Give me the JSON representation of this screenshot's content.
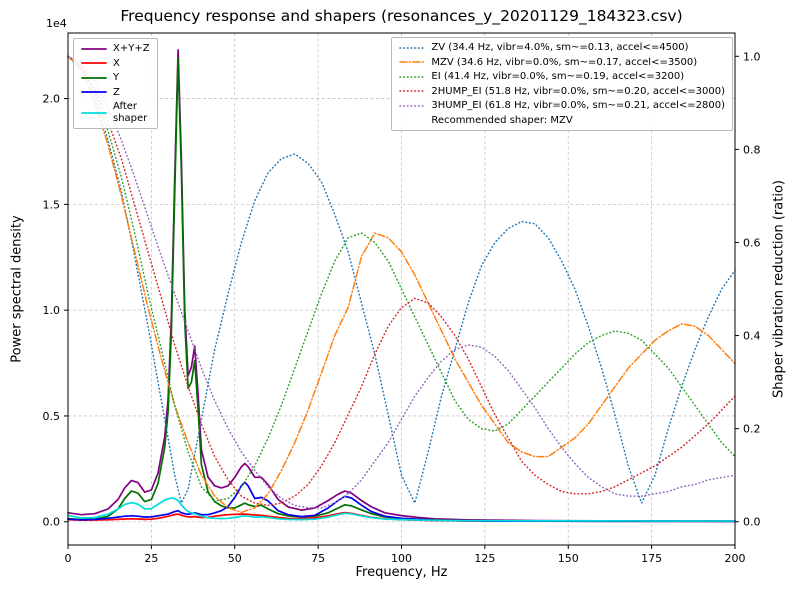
{
  "chart_data": {
    "type": "line",
    "title": "Frequency response and shapers (resonances_y_20201129_184323.csv)",
    "xlabel": "Frequency, Hz",
    "ylabel_left": "Power spectral density",
    "ylabel_right": "Shaper vibration reduction (ratio)",
    "xlim": [
      0,
      200
    ],
    "x_ticks": [
      0,
      25,
      50,
      75,
      100,
      125,
      150,
      175,
      200
    ],
    "left_axis": {
      "offset_text": "1e4",
      "range": [
        -1100,
        23100
      ],
      "ticks": [
        0,
        5000,
        10000,
        15000,
        20000
      ],
      "tick_labels": [
        "0.0",
        "0.5",
        "1.0",
        "1.5",
        "2.0"
      ]
    },
    "right_axis": {
      "range": [
        -0.05,
        1.05
      ],
      "ticks": [
        0,
        0.2,
        0.4,
        0.6,
        0.8,
        1.0
      ],
      "tick_labels": [
        "0.0",
        "0.2",
        "0.4",
        "0.6",
        "0.8",
        "1.0"
      ]
    },
    "grid": true,
    "legend_positions": [
      "upper left",
      "upper right"
    ],
    "recommended_shaper": "MZV",
    "recommended_text": "Recommended shaper: MZV",
    "psd_x": [
      0,
      4,
      8,
      12,
      15,
      17,
      19,
      21,
      23,
      25,
      27,
      29,
      30,
      31,
      32,
      33,
      34,
      35,
      36,
      37,
      38,
      39,
      40,
      42,
      44,
      46,
      48,
      50,
      52,
      53,
      54,
      56,
      58,
      60,
      63,
      66,
      70,
      74,
      78,
      81,
      83,
      85,
      88,
      91,
      95,
      100,
      105,
      110,
      115,
      120,
      130,
      140,
      160,
      180,
      200
    ],
    "psd_series": [
      {
        "name": "X+Y+Z",
        "legend_label": "X+Y+Z",
        "color": "#800080",
        "linestyle": "solid",
        "values": [
          420,
          330,
          380,
          600,
          1050,
          1600,
          1950,
          1850,
          1400,
          1500,
          2300,
          4000,
          5800,
          9700,
          16200,
          22300,
          17100,
          10100,
          6900,
          7300,
          8300,
          6000,
          3400,
          2100,
          1700,
          1600,
          1700,
          2100,
          2600,
          2750,
          2600,
          2100,
          2100,
          1750,
          1050,
          700,
          550,
          650,
          1000,
          1300,
          1450,
          1350,
          1000,
          700,
          420,
          290,
          200,
          140,
          110,
          90,
          70,
          55,
          45,
          40,
          38
        ]
      },
      {
        "name": "X",
        "legend_label": "X",
        "color": "#ff0000",
        "linestyle": "solid",
        "values": [
          100,
          70,
          80,
          90,
          110,
          130,
          140,
          130,
          110,
          120,
          160,
          220,
          260,
          300,
          340,
          360,
          310,
          260,
          230,
          230,
          240,
          220,
          200,
          210,
          260,
          300,
          330,
          350,
          360,
          360,
          350,
          320,
          300,
          260,
          200,
          160,
          150,
          180,
          280,
          380,
          430,
          400,
          300,
          210,
          140,
          100,
          75,
          55,
          45,
          38,
          30,
          25,
          20,
          18,
          16
        ]
      },
      {
        "name": "Y",
        "legend_label": "Y",
        "color": "#007000",
        "linestyle": "solid",
        "values": [
          150,
          100,
          120,
          250,
          600,
          1100,
          1450,
          1350,
          950,
          1050,
          1800,
          3500,
          5200,
          9000,
          15500,
          21900,
          16500,
          9500,
          6300,
          6600,
          7600,
          5300,
          2700,
          1400,
          950,
          750,
          650,
          650,
          800,
          880,
          800,
          720,
          780,
          600,
          380,
          280,
          230,
          260,
          420,
          650,
          800,
          750,
          560,
          380,
          230,
          160,
          110,
          80,
          60,
          50,
          40,
          30,
          25,
          22,
          20
        ]
      },
      {
        "name": "Z",
        "legend_label": "Z",
        "color": "#0000ee",
        "linestyle": "solid",
        "values": [
          120,
          90,
          110,
          160,
          220,
          260,
          280,
          260,
          220,
          230,
          280,
          330,
          360,
          420,
          480,
          520,
          420,
          380,
          350,
          380,
          420,
          380,
          330,
          330,
          420,
          520,
          720,
          1150,
          1700,
          1870,
          1700,
          1100,
          1150,
          980,
          520,
          330,
          240,
          300,
          650,
          1000,
          1200,
          1120,
          780,
          480,
          260,
          160,
          110,
          70,
          50,
          40,
          30,
          25,
          20,
          18,
          16
        ]
      },
      {
        "name": "After shaper",
        "legend_label": "After\nshaper",
        "color": "#00dcdc",
        "linestyle": "solid",
        "values": [
          300,
          180,
          200,
          350,
          600,
          820,
          900,
          830,
          600,
          620,
          820,
          1020,
          1080,
          1120,
          1100,
          1000,
          800,
          620,
          480,
          420,
          380,
          320,
          260,
          190,
          160,
          150,
          160,
          200,
          260,
          280,
          260,
          220,
          230,
          200,
          140,
          110,
          100,
          120,
          220,
          330,
          400,
          370,
          270,
          190,
          130,
          100,
          80,
          65,
          55,
          50,
          45,
          40,
          38,
          36,
          35
        ]
      }
    ],
    "shaper_x": [
      0,
      4,
      8,
      12,
      16,
      20,
      24,
      28,
      32,
      36,
      40,
      44,
      48,
      52,
      56,
      60,
      64,
      68,
      72,
      76,
      80,
      84,
      88,
      92,
      96,
      100,
      104,
      108,
      112,
      116,
      120,
      124,
      128,
      132,
      136,
      140,
      144,
      148,
      152,
      156,
      160,
      164,
      168,
      172,
      176,
      180,
      184,
      188,
      192,
      196,
      200
    ],
    "shaper_series": [
      {
        "name": "ZV",
        "label": "ZV (34.4 Hz, vibr=4.0%, sm~=0.13, accel<=4500)",
        "color": "#1f77b4",
        "linestyle": "dotted",
        "x": [
          0,
          4,
          8,
          12,
          16,
          20,
          24,
          28,
          32,
          34,
          36,
          40,
          44,
          48,
          52,
          56,
          60,
          64,
          68,
          72,
          76,
          80,
          84,
          88,
          92,
          96,
          100,
          104,
          108,
          112,
          116,
          120,
          124,
          128,
          132,
          136,
          140,
          144,
          148,
          152,
          156,
          160,
          164,
          168,
          172,
          176,
          180,
          184,
          188,
          192,
          196,
          200
        ],
        "values": [
          1.0,
          0.97,
          0.91,
          0.82,
          0.71,
          0.57,
          0.42,
          0.26,
          0.1,
          0.04,
          0.07,
          0.22,
          0.37,
          0.49,
          0.6,
          0.69,
          0.75,
          0.78,
          0.79,
          0.77,
          0.73,
          0.66,
          0.58,
          0.47,
          0.36,
          0.23,
          0.1,
          0.04,
          0.15,
          0.27,
          0.37,
          0.47,
          0.55,
          0.6,
          0.63,
          0.645,
          0.64,
          0.61,
          0.56,
          0.5,
          0.42,
          0.33,
          0.23,
          0.12,
          0.04,
          0.1,
          0.2,
          0.29,
          0.37,
          0.44,
          0.5,
          0.54
        ]
      },
      {
        "name": "MZV",
        "label": "MZV (34.6 Hz, vibr=0.0%, sm~=0.17, accel<=3500)",
        "color": "#ff7f0e",
        "linestyle": "dashdot",
        "values": [
          1.0,
          0.975,
          0.9,
          0.81,
          0.7,
          0.58,
          0.46,
          0.35,
          0.25,
          0.17,
          0.1,
          0.055,
          0.03,
          0.02,
          0.03,
          0.06,
          0.11,
          0.17,
          0.24,
          0.32,
          0.4,
          0.46,
          0.57,
          0.62,
          0.61,
          0.58,
          0.53,
          0.47,
          0.41,
          0.35,
          0.3,
          0.25,
          0.21,
          0.17,
          0.15,
          0.14,
          0.14,
          0.16,
          0.18,
          0.21,
          0.25,
          0.29,
          0.33,
          0.36,
          0.39,
          0.41,
          0.425,
          0.42,
          0.4,
          0.37,
          0.34
        ]
      },
      {
        "name": "EI",
        "label": "EI (41.4 Hz, vibr=0.0%, sm~=0.19, accel<=3200)",
        "color": "#2ca02c",
        "linestyle": "dotted",
        "values": [
          1.0,
          0.98,
          0.92,
          0.84,
          0.74,
          0.62,
          0.49,
          0.37,
          0.25,
          0.15,
          0.075,
          0.045,
          0.05,
          0.075,
          0.12,
          0.18,
          0.25,
          0.33,
          0.41,
          0.49,
          0.56,
          0.61,
          0.62,
          0.6,
          0.56,
          0.5,
          0.44,
          0.38,
          0.32,
          0.26,
          0.22,
          0.2,
          0.195,
          0.21,
          0.24,
          0.27,
          0.3,
          0.33,
          0.36,
          0.385,
          0.4,
          0.41,
          0.405,
          0.39,
          0.36,
          0.33,
          0.29,
          0.25,
          0.21,
          0.17,
          0.14
        ]
      },
      {
        "name": "2HUMP_EI",
        "label": "2HUMP_EI (51.8 Hz, vibr=0.0%, sm~=0.20, accel<=3000)",
        "color": "#d62728",
        "linestyle": "dotted",
        "values": [
          1.0,
          0.98,
          0.93,
          0.86,
          0.78,
          0.68,
          0.58,
          0.48,
          0.38,
          0.29,
          0.21,
          0.14,
          0.09,
          0.055,
          0.04,
          0.035,
          0.04,
          0.055,
          0.08,
          0.12,
          0.17,
          0.23,
          0.29,
          0.36,
          0.42,
          0.46,
          0.48,
          0.47,
          0.44,
          0.4,
          0.35,
          0.29,
          0.23,
          0.18,
          0.13,
          0.1,
          0.08,
          0.065,
          0.06,
          0.06,
          0.065,
          0.075,
          0.09,
          0.105,
          0.12,
          0.14,
          0.16,
          0.185,
          0.21,
          0.24,
          0.27
        ]
      },
      {
        "name": "3HUMP_EI",
        "label": "3HUMP_EI (61.8 Hz, vibr=0.0%, sm~=0.21, accel<=2800)",
        "color": "#9467bd",
        "linestyle": "dotted",
        "values": [
          1.0,
          0.985,
          0.945,
          0.89,
          0.82,
          0.74,
          0.655,
          0.57,
          0.49,
          0.41,
          0.33,
          0.26,
          0.2,
          0.15,
          0.11,
          0.075,
          0.05,
          0.035,
          0.03,
          0.03,
          0.04,
          0.06,
          0.09,
          0.13,
          0.17,
          0.22,
          0.27,
          0.31,
          0.345,
          0.37,
          0.38,
          0.375,
          0.355,
          0.325,
          0.285,
          0.245,
          0.2,
          0.16,
          0.125,
          0.095,
          0.075,
          0.06,
          0.055,
          0.055,
          0.06,
          0.065,
          0.075,
          0.08,
          0.09,
          0.095,
          0.1
        ]
      }
    ]
  }
}
